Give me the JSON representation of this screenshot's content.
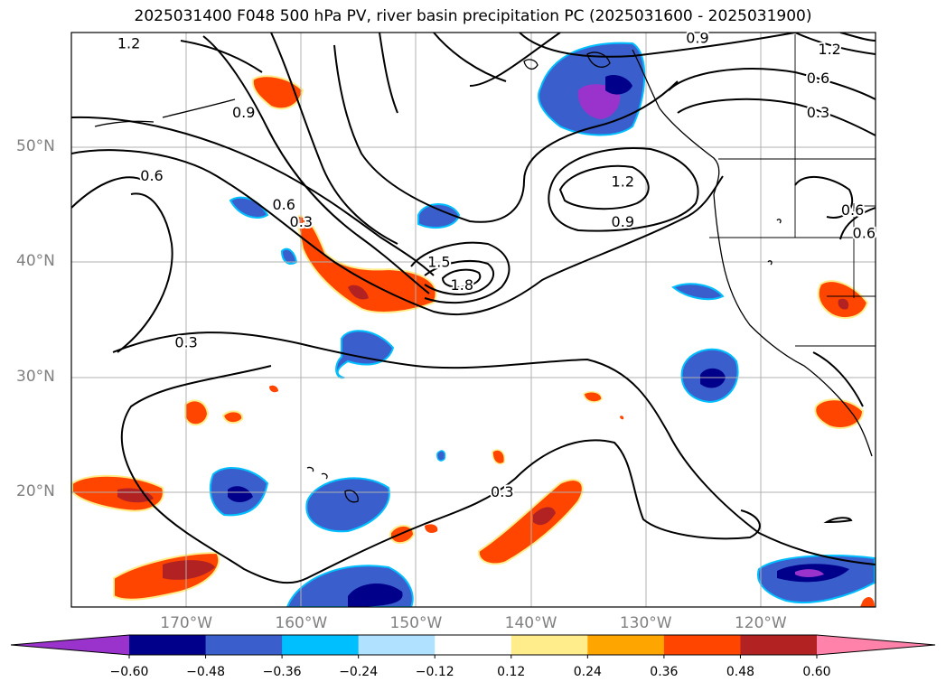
{
  "title": "2025031400 F048 500 hPa PV, river basin precipitation PC (2025031600 - 2025031900)",
  "lat_labels": [
    {
      "text": "50°N",
      "lat": 50
    },
    {
      "text": "40°N",
      "lat": 40
    },
    {
      "text": "30°N",
      "lat": 30
    },
    {
      "text": "20°N",
      "lat": 20
    }
  ],
  "lon_labels": [
    {
      "text": "170°W",
      "lon": -170
    },
    {
      "text": "160°W",
      "lon": -160
    },
    {
      "text": "150°W",
      "lon": -150
    },
    {
      "text": "140°W",
      "lon": -140
    },
    {
      "text": "130°W",
      "lon": -130
    },
    {
      "text": "120°W",
      "lon": -120
    }
  ],
  "extent": {
    "lon_min": -180,
    "lon_max": -110,
    "lat_min": 10,
    "lat_max": 60
  },
  "contour_labels": [
    {
      "text": "1.2",
      "lon": -175,
      "lat": 59
    },
    {
      "text": "0.9",
      "lon": -165,
      "lat": 53
    },
    {
      "text": "0.6",
      "lon": -173,
      "lat": 47.5
    },
    {
      "text": "0.6",
      "lon": -161.5,
      "lat": 45
    },
    {
      "text": "0.3",
      "lon": -160,
      "lat": 43.5
    },
    {
      "text": "1.5",
      "lon": -148,
      "lat": 40
    },
    {
      "text": "1.8",
      "lon": -146,
      "lat": 38
    },
    {
      "text": "0.3",
      "lon": -170,
      "lat": 33
    },
    {
      "text": "0.3",
      "lon": -142.5,
      "lat": 20
    },
    {
      "text": "1.2",
      "lon": -132,
      "lat": 47
    },
    {
      "text": "0.9",
      "lon": -132,
      "lat": 43.5
    },
    {
      "text": "0.9",
      "lon": -125.5,
      "lat": 59.5
    },
    {
      "text": "1.2",
      "lon": -114,
      "lat": 58.5
    },
    {
      "text": "0.6",
      "lon": -115,
      "lat": 56
    },
    {
      "text": "0.3",
      "lon": -115,
      "lat": 53
    },
    {
      "text": "0.6",
      "lon": -112,
      "lat": 44.5
    },
    {
      "text": "0.6",
      "lon": -111,
      "lat": 42.5
    }
  ],
  "colorbar": {
    "colors": [
      "#9933cc",
      "#00008b",
      "#3a5fcd",
      "#00bfff",
      "#b0e2ff",
      "#ffffff",
      "#ffec8b",
      "#ffa500",
      "#ff4500",
      "#b22222",
      "#ff82ab"
    ],
    "ticks": [
      "−0.60",
      "−0.48",
      "−0.36",
      "−0.24",
      "−0.12",
      "0.12",
      "0.24",
      "0.36",
      "0.48",
      "0.60"
    ]
  }
}
